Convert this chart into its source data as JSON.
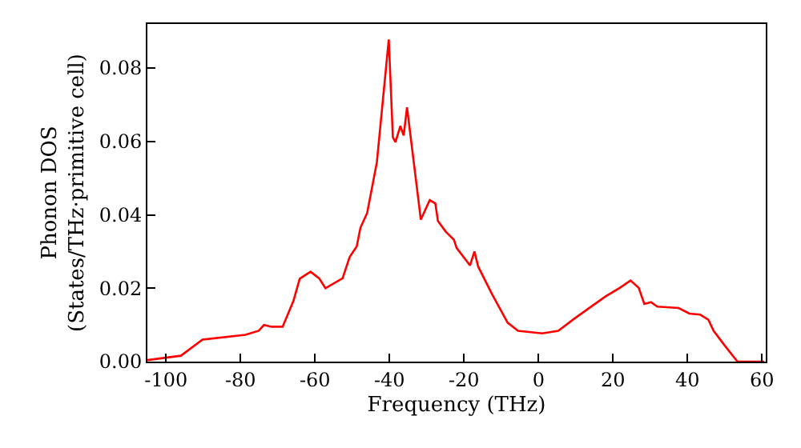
{
  "chart_data": {
    "type": "line",
    "xlabel": "Frequency (THz)",
    "ylabel": "Phonon DOS\n(States/THz·primitive cell)",
    "xlim": [
      -105,
      61
    ],
    "ylim": [
      0,
      0.092
    ],
    "xticks": [
      -100,
      -80,
      -60,
      -40,
      -20,
      0,
      20,
      40,
      60
    ],
    "yticks": [
      {
        "value": 0,
        "label": "0.00"
      },
      0.02,
      0.04,
      0.06,
      0.08
    ],
    "series": [
      {
        "color": "#ff0000",
        "x": [
          -105,
          -96,
          -90.2,
          -78.7,
          -75.1,
          -73.7,
          -71.6,
          -68.7,
          -65.8,
          -64.1,
          -61.2,
          -58.9,
          -57.2,
          -52.6,
          -50.7,
          -48.8,
          -47.8,
          -46,
          -43.4,
          -40.2,
          -39.1,
          -38.4,
          -37.1,
          -36.2,
          -35.3,
          -31.6,
          -29.2,
          -27.7,
          -27,
          -24.9,
          -22.7,
          -22,
          -18.4,
          -17.2,
          -16.2,
          -12.6,
          -8.3,
          -5.5,
          1,
          5.3,
          9.6,
          14.7,
          18.2,
          21.8,
          24.7,
          26.9,
          28.4,
          30.2,
          31.9,
          37.6,
          40.5,
          43.4,
          45.6,
          47,
          49.9,
          53.4,
          60.6
        ],
        "values": [
          0.0004,
          0.0016,
          0.006,
          0.0073,
          0.0084,
          0.01,
          0.0095,
          0.0095,
          0.0165,
          0.0226,
          0.0245,
          0.0227,
          0.02,
          0.0227,
          0.0285,
          0.0314,
          0.0365,
          0.0405,
          0.0543,
          0.0878,
          0.0611,
          0.0598,
          0.0642,
          0.0616,
          0.0693,
          0.0387,
          0.044,
          0.0431,
          0.0383,
          0.0354,
          0.0332,
          0.031,
          0.0262,
          0.03,
          0.0259,
          0.0186,
          0.0106,
          0.0084,
          0.0077,
          0.0084,
          0.0117,
          0.0154,
          0.0179,
          0.0201,
          0.0221,
          0.0201,
          0.0157,
          0.0162,
          0.015,
          0.0146,
          0.0131,
          0.0128,
          0.0114,
          0.0084,
          0.0045,
          0,
          0
        ]
      }
    ]
  }
}
